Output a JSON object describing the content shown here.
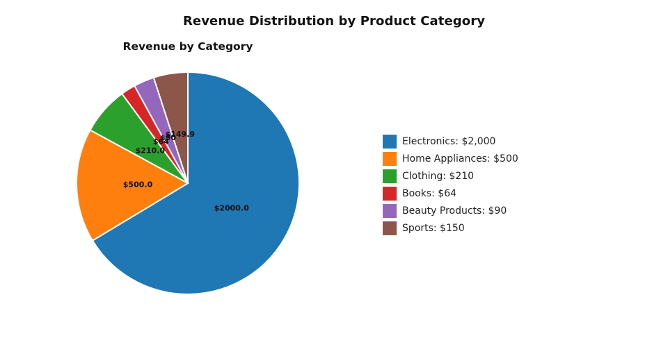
{
  "title": "Revenue Distribution by Product Category",
  "chart_data": {
    "type": "pie",
    "title": "Revenue by Category",
    "categories": [
      "Electronics",
      "Home Appliances",
      "Clothing",
      "Books",
      "Beauty Products",
      "Sports"
    ],
    "values": [
      2000,
      500,
      210,
      64,
      90,
      149.9
    ],
    "slice_labels": [
      "$2000.0",
      "$500.0",
      "$210.0",
      "$64",
      "$90",
      "$149.9"
    ],
    "legend_labels": [
      "Electronics: $2,000",
      "Home Appliances: $500",
      "Clothing: $210",
      "Books: $64",
      "Beauty Products: $90",
      "Sports: $150"
    ],
    "colors": [
      "#1f77b4",
      "#ff7f0e",
      "#2ca02c",
      "#d62728",
      "#9467bd",
      "#8c564b"
    ],
    "direction": "clockwise",
    "start": "top",
    "legend_position": "right"
  }
}
